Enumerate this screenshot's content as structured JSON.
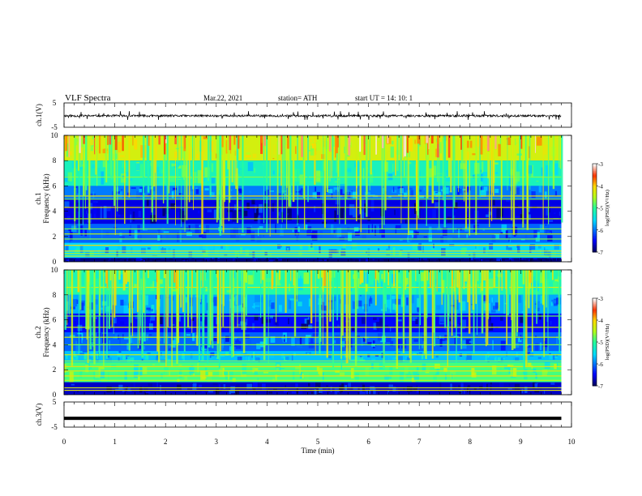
{
  "header": {
    "title": "VLF  Spectra",
    "date": "Mar.22, 2021",
    "station": "station= ATH",
    "start": "start  UT  =   14: 10: 1"
  },
  "chart_data": [
    {
      "type": "line",
      "ylabel": "ch.1(V)",
      "yticks": [
        "5",
        "-5"
      ],
      "ylim": [
        -5,
        5
      ],
      "series": [
        {
          "baseline": -0.3,
          "noise_range": [
            -1.5,
            1.0
          ]
        }
      ]
    },
    {
      "type": "heatmap",
      "ylabel_channel": "ch.1",
      "ylabel": "Frequency  (kHz)",
      "ylim": [
        0,
        10
      ],
      "yticks": [
        "0",
        "2",
        "4",
        "6",
        "8",
        "10"
      ],
      "colorbar": {
        "label": "log(PSD)(V²/Hz)",
        "range": [
          -7,
          -3
        ],
        "ticks": [
          "-3",
          "-4",
          "-5",
          "-6",
          "-7"
        ]
      },
      "bands_khz": [
        {
          "from": 8.0,
          "to": 10.0,
          "level": -4.3
        },
        {
          "from": 6.0,
          "to": 8.0,
          "level": -5.2
        },
        {
          "from": 5.0,
          "to": 6.0,
          "level": -6.0
        },
        {
          "from": 3.0,
          "to": 5.0,
          "level": -6.6
        },
        {
          "from": 1.5,
          "to": 3.0,
          "level": -6.1
        },
        {
          "from": 0.3,
          "to": 1.5,
          "level": -5.6
        },
        {
          "from": 0.0,
          "to": 0.3,
          "level": -6.9
        }
      ],
      "lines_khz": [
        0.45,
        0.65,
        0.85,
        1.3,
        1.8,
        2.2,
        2.6,
        3.4,
        4.3,
        4.95,
        5.2,
        6.7,
        8.1
      ]
    },
    {
      "type": "heatmap",
      "ylabel_channel": "ch.2",
      "ylabel": "Frequency  (kHz)",
      "ylim": [
        0,
        10
      ],
      "yticks": [
        "0",
        "2",
        "4",
        "6",
        "8",
        "10"
      ],
      "colorbar": {
        "label": "log(PSD)(V²/Hz)",
        "range": [
          -7,
          -3
        ],
        "ticks": [
          "-3",
          "-4",
          "-5",
          "-6",
          "-7"
        ]
      },
      "bands_khz": [
        {
          "from": 8.0,
          "to": 10.0,
          "level": -5.1
        },
        {
          "from": 6.5,
          "to": 8.0,
          "level": -5.8
        },
        {
          "from": 5.0,
          "to": 6.5,
          "level": -6.5
        },
        {
          "from": 3.5,
          "to": 5.0,
          "level": -6.1
        },
        {
          "from": 2.6,
          "to": 3.5,
          "level": -5.7
        },
        {
          "from": 1.0,
          "to": 2.6,
          "level": -4.9
        },
        {
          "from": 0.0,
          "to": 1.0,
          "level": -6.7
        }
      ],
      "lines_khz": [
        0.35,
        0.55,
        1.15,
        1.5,
        1.9,
        2.25,
        2.7,
        3.2,
        4.0,
        4.6,
        5.4,
        6.3,
        8.6
      ]
    },
    {
      "type": "line",
      "ylabel": "ch.3(V)",
      "yticks": [
        "5",
        "-5"
      ],
      "ylim": [
        -5,
        5
      ],
      "series": [
        {
          "constant": -1.5
        }
      ]
    }
  ],
  "time_axis": {
    "xlabel": "Time  (min)",
    "xlim": [
      0,
      10
    ],
    "data_end_min": 9.8,
    "ticks": [
      "0",
      "1",
      "2",
      "3",
      "4",
      "5",
      "6",
      "7",
      "8",
      "9",
      "10"
    ]
  }
}
